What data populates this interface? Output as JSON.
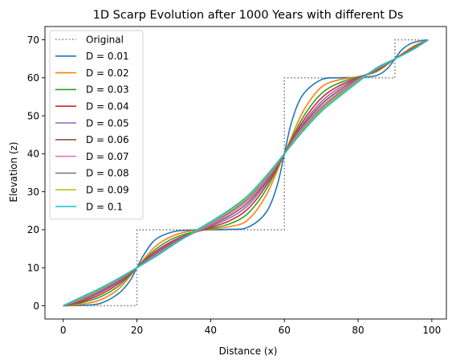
{
  "chart_data": {
    "type": "line",
    "title": "1D Scarp Evolution after 1000 Years with different Ds",
    "xlabel": "Distance (x)",
    "ylabel": "Elevation (z)",
    "xlim": [
      -4.95,
      103.95
    ],
    "ylim": [
      -3.5,
      73.5
    ],
    "xticks": [
      0,
      20,
      40,
      60,
      80,
      100
    ],
    "yticks": [
      0,
      10,
      20,
      30,
      40,
      50,
      60,
      70
    ],
    "grid": false,
    "legend_position": "top-left",
    "original": {
      "name": "Original",
      "color": "#808080",
      "style": "dotted",
      "x": [
        0,
        20,
        20,
        60,
        60,
        90,
        90,
        99
      ],
      "y": [
        0,
        0,
        20,
        20,
        60,
        60,
        70,
        70
      ]
    },
    "series": [
      {
        "name": "D = 0.01",
        "color": "#1f77b4",
        "x": [
          0,
          5,
          10,
          15,
          18,
          20,
          22,
          25,
          30,
          35,
          40,
          45,
          50,
          55,
          58,
          60,
          62,
          65,
          70,
          75,
          80,
          85,
          88,
          90,
          92,
          95,
          99
        ],
        "y": [
          0,
          0.1,
          0.6,
          3.2,
          6.4,
          10,
          13.6,
          17.4,
          19.5,
          19.9,
          20,
          20.1,
          20.6,
          24.5,
          31.5,
          40,
          48.5,
          55.5,
          59.5,
          60,
          60.1,
          60.6,
          62.5,
          65,
          67.5,
          69.3,
          70
        ]
      },
      {
        "name": "D = 0.02",
        "color": "#ff7f0e",
        "x": [
          0,
          5,
          10,
          15,
          20,
          25,
          30,
          35,
          40,
          45,
          50,
          55,
          60,
          65,
          70,
          75,
          80,
          85,
          90,
          95,
          99
        ],
        "y": [
          0,
          0.4,
          1.5,
          4.4,
          10,
          15.6,
          18.5,
          19.7,
          20.1,
          20.8,
          22.5,
          29,
          40,
          51,
          57.5,
          59.5,
          60.3,
          61.6,
          65,
          68.3,
          70
        ]
      },
      {
        "name": "D = 0.03",
        "color": "#2ca02c",
        "x": [
          0,
          5,
          10,
          15,
          20,
          25,
          30,
          35,
          40,
          45,
          50,
          55,
          60,
          65,
          70,
          75,
          80,
          85,
          90,
          95,
          99
        ],
        "y": [
          0,
          0.8,
          2.3,
          5.2,
          10,
          14.8,
          17.8,
          19.3,
          20.3,
          21.5,
          24.2,
          30.5,
          40,
          49.5,
          55.8,
          58.7,
          60.2,
          61.8,
          65,
          68,
          70
        ]
      },
      {
        "name": "D = 0.04",
        "color": "#d62728",
        "x": [
          0,
          5,
          10,
          15,
          20,
          25,
          30,
          35,
          40,
          45,
          50,
          55,
          60,
          65,
          70,
          75,
          80,
          85,
          90,
          95,
          99
        ],
        "y": [
          0,
          1.1,
          2.9,
          5.8,
          10,
          14.2,
          17.2,
          19.1,
          20.6,
          22.3,
          25.4,
          31.5,
          40,
          48.5,
          54.6,
          58,
          60,
          62,
          65,
          67.9,
          70
        ]
      },
      {
        "name": "D = 0.05",
        "color": "#9467bd",
        "x": [
          0,
          5,
          10,
          15,
          20,
          25,
          30,
          35,
          40,
          45,
          50,
          55,
          60,
          65,
          70,
          75,
          80,
          85,
          90,
          95,
          99
        ],
        "y": [
          0,
          1.4,
          3.4,
          6.2,
          10,
          13.8,
          16.9,
          19,
          20.9,
          23,
          26.3,
          32.2,
          40,
          47.8,
          53.7,
          57.4,
          59.9,
          62.1,
          65,
          67.8,
          70
        ]
      },
      {
        "name": "D = 0.06",
        "color": "#8c564b",
        "x": [
          0,
          5,
          10,
          15,
          20,
          25,
          30,
          35,
          40,
          45,
          50,
          55,
          60,
          65,
          70,
          75,
          80,
          85,
          90,
          95,
          99
        ],
        "y": [
          0,
          1.6,
          3.7,
          6.5,
          10,
          13.5,
          16.6,
          19,
          21.2,
          23.6,
          27,
          32.7,
          40,
          47.3,
          53,
          56.8,
          59.7,
          62.2,
          65,
          67.7,
          70
        ]
      },
      {
        "name": "D = 0.07",
        "color": "#e377c2",
        "x": [
          0,
          5,
          10,
          15,
          20,
          25,
          30,
          35,
          40,
          45,
          50,
          55,
          60,
          65,
          70,
          75,
          80,
          85,
          90,
          95,
          99
        ],
        "y": [
          0,
          1.8,
          4,
          6.8,
          10,
          13.3,
          16.4,
          19,
          21.4,
          24.1,
          27.6,
          33.1,
          40,
          46.9,
          52.4,
          56.3,
          59.5,
          62.3,
          65,
          67.6,
          70
        ]
      },
      {
        "name": "D = 0.08",
        "color": "#7f7f7f",
        "x": [
          0,
          5,
          10,
          15,
          20,
          25,
          30,
          35,
          40,
          45,
          50,
          55,
          60,
          65,
          70,
          75,
          80,
          85,
          90,
          95,
          99
        ],
        "y": [
          0,
          2,
          4.2,
          7,
          10,
          13.1,
          16.3,
          19,
          21.7,
          24.5,
          28.1,
          33.5,
          40,
          46.5,
          51.9,
          55.9,
          59.3,
          62.4,
          65,
          67.6,
          70
        ]
      },
      {
        "name": "D = 0.09",
        "color": "#bcbd22",
        "x": [
          0,
          5,
          10,
          15,
          20,
          25,
          30,
          35,
          40,
          45,
          50,
          55,
          60,
          65,
          70,
          75,
          80,
          85,
          90,
          95,
          99
        ],
        "y": [
          0,
          2.1,
          4.4,
          7.1,
          10,
          13,
          16.2,
          19.1,
          21.9,
          24.9,
          28.5,
          33.8,
          40,
          46.2,
          51.5,
          55.5,
          59.1,
          62.5,
          65,
          67.5,
          70
        ]
      },
      {
        "name": "D = 0.1",
        "color": "#17becf",
        "x": [
          0,
          5,
          10,
          15,
          20,
          25,
          30,
          35,
          40,
          45,
          50,
          55,
          60,
          65,
          70,
          75,
          80,
          85,
          90,
          95,
          99
        ],
        "y": [
          0,
          2.3,
          4.6,
          7.2,
          10,
          12.9,
          16.1,
          19.2,
          22.1,
          25.2,
          28.9,
          34.1,
          40,
          45.9,
          51.1,
          55.1,
          58.9,
          62.6,
          65,
          67.5,
          70
        ]
      }
    ]
  }
}
